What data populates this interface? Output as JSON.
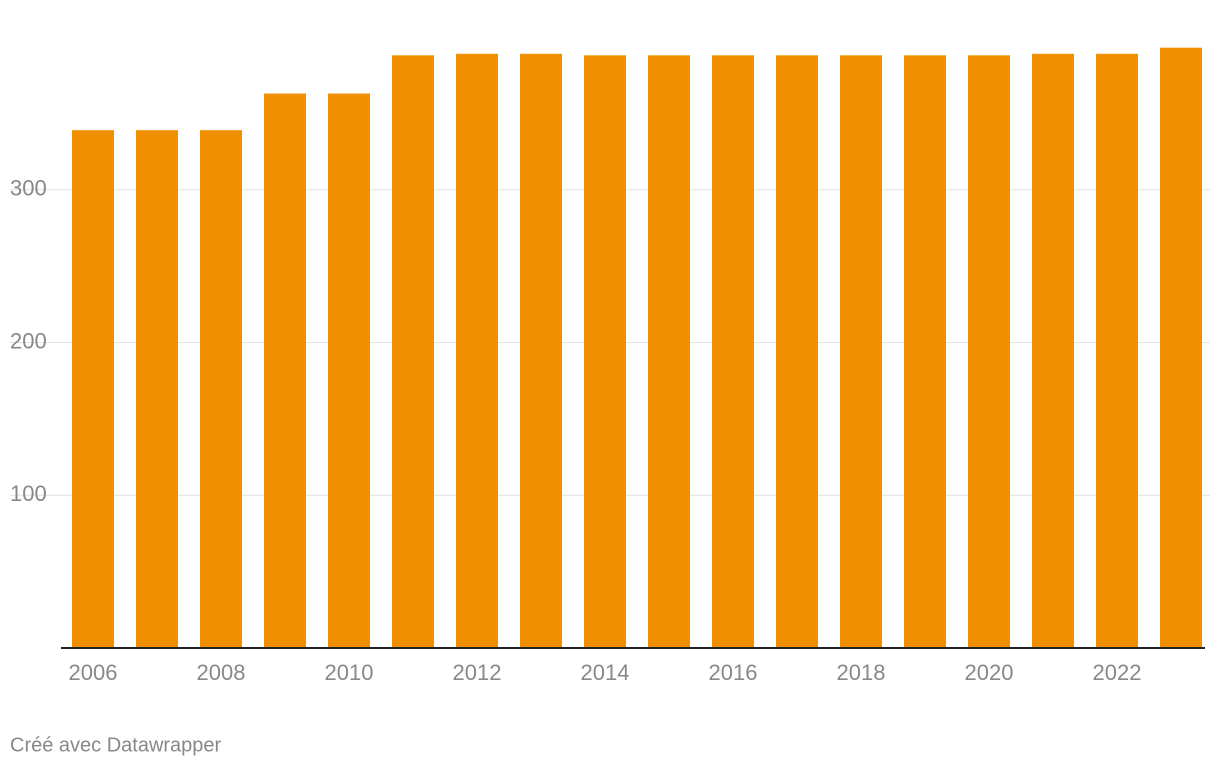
{
  "chart_data": {
    "type": "bar",
    "categories": [
      "2006",
      null,
      "2008",
      null,
      "2010",
      null,
      "2012",
      null,
      "2014",
      null,
      "2016",
      null,
      "2018",
      null,
      "2020",
      null,
      "2022",
      null
    ],
    "values": [
      339,
      339,
      339,
      363,
      363,
      388,
      389,
      389,
      388,
      388,
      388,
      388,
      388,
      388,
      388,
      389,
      389,
      393
    ],
    "color": "#f09000",
    "ylim": [
      0,
      400
    ],
    "yticks": [
      100,
      200,
      300
    ],
    "grid": true,
    "footer": "Créé avec Datawrapper"
  }
}
